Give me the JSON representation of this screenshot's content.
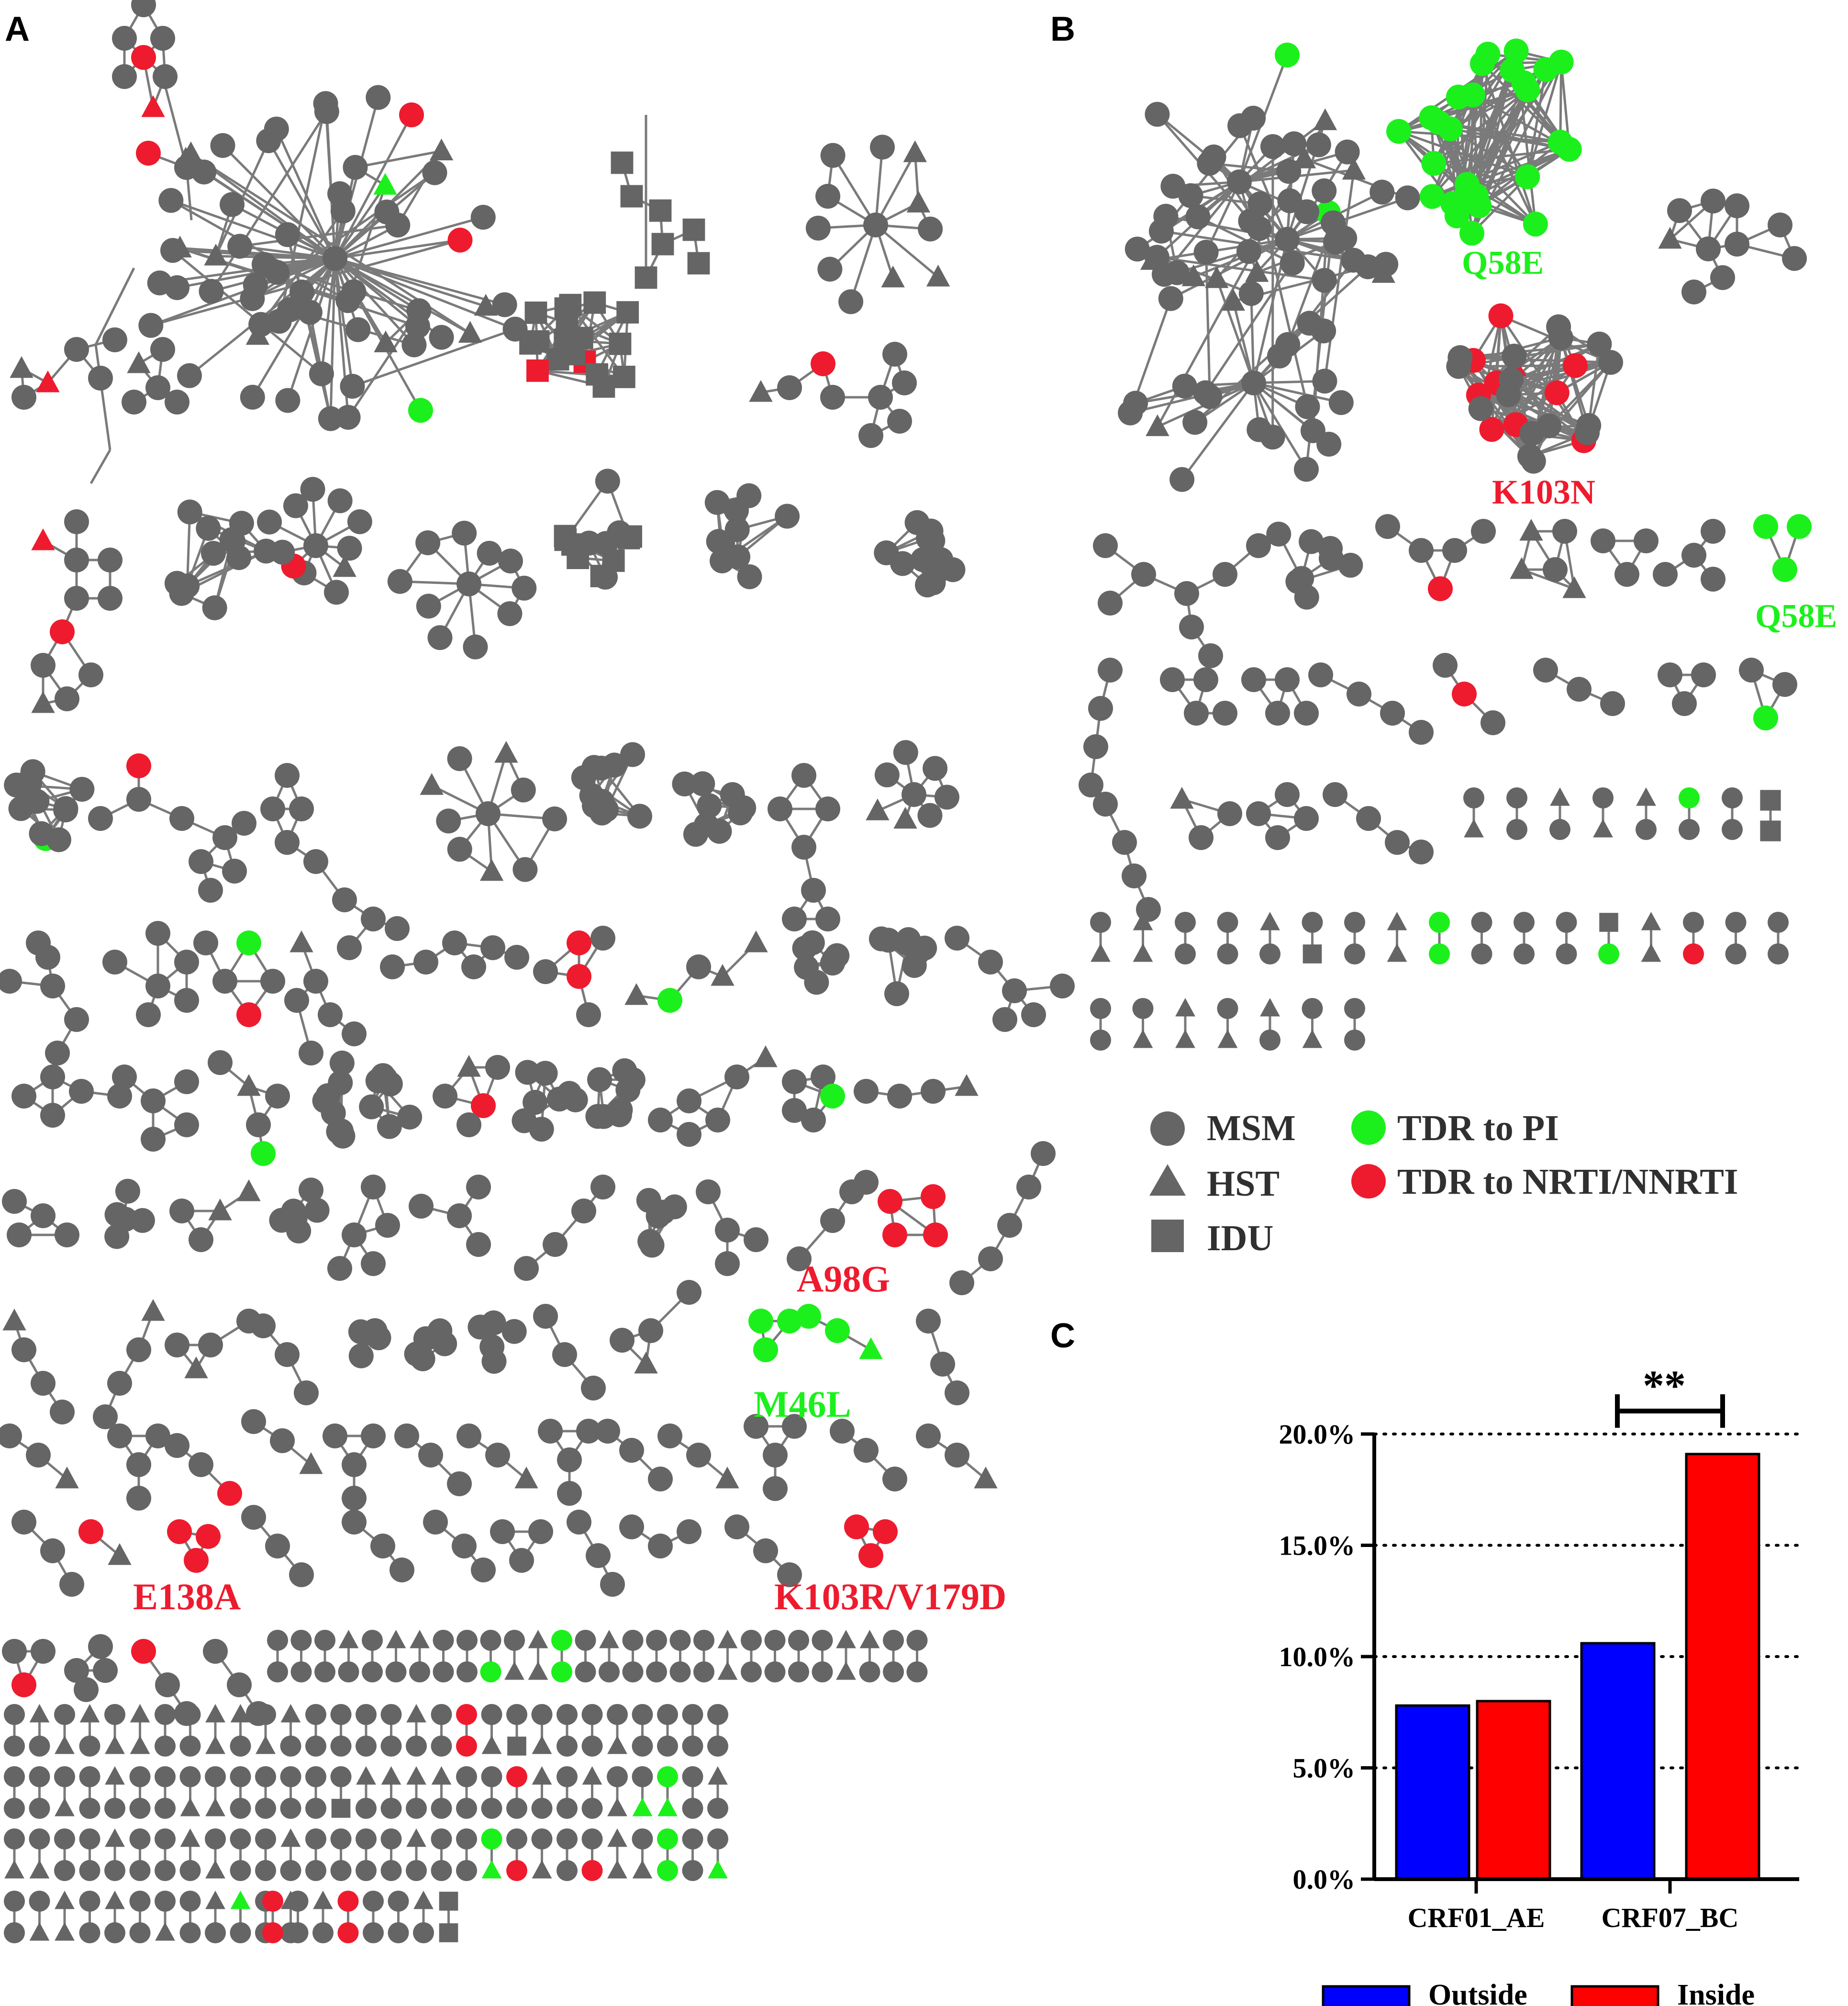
{
  "panels": {
    "a": "A",
    "b": "B",
    "c": "C"
  },
  "colors": {
    "node": "#656565",
    "edge": "#7a7a7a",
    "pi": "#1cf01c",
    "nrti": "#ee1b2e",
    "outside": "#0000ff",
    "inside": "#ff0000"
  },
  "mutations": {
    "a98g": "A98G",
    "m46l": "M46L",
    "e138a": "E138A",
    "k103r_v179d": "K103R/V179D",
    "q58e_big": "Q58E",
    "k103n": "K103N",
    "q58e_small": "Q58E"
  },
  "legend": {
    "msm": "MSM",
    "hst": "HST",
    "idu": "IDU",
    "tdr_pi": "TDR to PI",
    "tdr_nrti": "TDR to NRTI/NNRTI"
  },
  "chart_data": {
    "type": "bar",
    "categories": [
      "CRF01_AE",
      "CRF07_BC"
    ],
    "series": [
      {
        "name": "Outside",
        "values": [
          7.8,
          10.6
        ]
      },
      {
        "name": "Inside",
        "values": [
          8.0,
          19.1
        ]
      }
    ],
    "ylim": [
      0,
      20
    ],
    "yticks": [
      "0.0%",
      "5.0%",
      "10.0%",
      "15.0%",
      "20.0%"
    ],
    "significance": "**",
    "grid": "dotted-horizontal",
    "legend_position": "bottom"
  }
}
